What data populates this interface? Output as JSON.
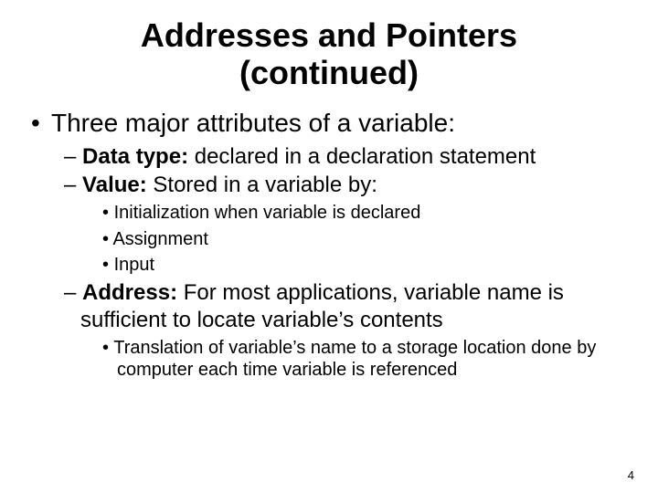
{
  "title_line1": "Addresses and Pointers",
  "title_line2": "(continued)",
  "lvl1_text": "Three major attributes of a variable:",
  "datatype_label": "Data type:",
  "datatype_rest": " declared in a declaration statement",
  "value_label": "Value:",
  "value_rest": " Stored in a variable by:",
  "value_sub1": "Initialization when variable is declared",
  "value_sub2": "Assignment",
  "value_sub3": "Input",
  "address_label": "Address:",
  "address_rest": " For most applications, variable name is sufficient to locate variable’s contents",
  "address_sub1": "Translation of variable’s name to a storage location done by computer each time variable is referenced",
  "page_number": "4",
  "bullet_char": "•",
  "dash_char": "–"
}
